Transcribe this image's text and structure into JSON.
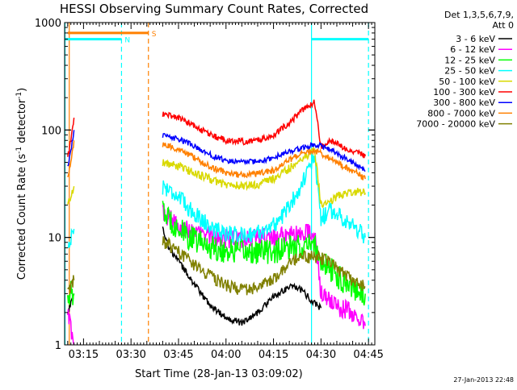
{
  "chart_data": {
    "type": "line",
    "title": "HESSI Observing Summary Count Rates, Corrected",
    "xlabel": "Start Time (28-Jan-13 03:09:02)",
    "ylabel": "Corrected Count Rate (s-1 detector-1)",
    "ylabel_parts": {
      "main": "Corrected Count Rate (s",
      "sup1": "-1",
      "mid": " detector",
      "sup2": "-1",
      "end": ")"
    },
    "yscale": "log",
    "ylim": [
      1,
      1000
    ],
    "xlim": [
      "03:09:02",
      "04:47:00"
    ],
    "x_ticks": [
      "03:15",
      "03:30",
      "03:45",
      "04:00",
      "04:15",
      "04:30",
      "04:45"
    ],
    "y_ticks": [
      "1",
      "10",
      "100",
      "1000"
    ],
    "legend_header": [
      "Det 1,3,5,6,7,9,",
      "Att 0"
    ],
    "legend_position": "right",
    "timestamp": "27-Jan-2013 22:48",
    "flag_labels": [
      "S",
      "N"
    ],
    "series": [
      {
        "name": "3 - 6 keV",
        "color": "#000000",
        "x": [
          "03:10",
          "03:12",
          "03:40",
          "03:42",
          "03:45",
          "03:48",
          "03:52",
          "03:56",
          "04:00",
          "04:05",
          "04:10",
          "04:15",
          "04:18",
          "04:21",
          "04:24",
          "04:27",
          "04:30"
        ],
        "y": [
          2,
          3,
          12,
          8,
          6,
          4.5,
          3,
          2.2,
          1.8,
          1.6,
          2,
          2.8,
          3.2,
          3.6,
          3.2,
          2.6,
          2.2
        ]
      },
      {
        "name": "6 - 12 keV",
        "color": "#ff00ff",
        "x": [
          "03:10",
          "03:12",
          "03:40",
          "03:42",
          "03:45",
          "03:48",
          "03:52",
          "03:56",
          "04:00",
          "04:05",
          "04:10",
          "04:15",
          "04:20",
          "04:25",
          "04:28",
          "04:30",
          "04:33",
          "04:36",
          "04:40",
          "04:44"
        ],
        "y": [
          2,
          1,
          17,
          15,
          13,
          12,
          11,
          10,
          9.8,
          9.7,
          9.8,
          10.2,
          10.5,
          11,
          11.2,
          3,
          2.5,
          2.2,
          2,
          1.5
        ]
      },
      {
        "name": "12 - 25 keV",
        "color": "#00ff00",
        "x": [
          "03:10",
          "03:12",
          "03:40",
          "03:42",
          "03:45",
          "03:48",
          "03:52",
          "03:56",
          "04:00",
          "04:05",
          "04:10",
          "04:15",
          "04:20",
          "04:25",
          "04:28",
          "04:30",
          "04:33",
          "04:36",
          "04:40",
          "04:44"
        ],
        "y": [
          3,
          3,
          17,
          15,
          12,
          10,
          9,
          8,
          7.5,
          7.3,
          7.3,
          7.5,
          7.8,
          8.2,
          8.5,
          6,
          5,
          4.2,
          3.5,
          3
        ]
      },
      {
        "name": "25 - 50 keV",
        "color": "#00ffff",
        "x": [
          "03:10",
          "03:12",
          "03:40",
          "03:42",
          "03:45",
          "03:48",
          "03:52",
          "03:56",
          "04:00",
          "04:05",
          "04:10",
          "04:15",
          "04:18",
          "04:21",
          "04:24",
          "04:27",
          "04:28",
          "04:30",
          "04:33",
          "04:36",
          "04:40",
          "04:44"
        ],
        "y": [
          8,
          12,
          30,
          28,
          24,
          19,
          15,
          12,
          11,
          10.5,
          11,
          13,
          16,
          22,
          32,
          48,
          55,
          15,
          18,
          16,
          13,
          10
        ]
      },
      {
        "name": "50 - 100 keV",
        "color": "#d9d900",
        "x": [
          "03:10",
          "03:12",
          "03:40",
          "03:42",
          "03:45",
          "03:48",
          "03:52",
          "03:56",
          "04:00",
          "04:05",
          "04:10",
          "04:15",
          "04:18",
          "04:21",
          "04:24",
          "04:27",
          "04:28",
          "04:30",
          "04:33",
          "04:36",
          "04:40",
          "04:44"
        ],
        "y": [
          20,
          30,
          50,
          48,
          46,
          42,
          38,
          34,
          31,
          30,
          31,
          35,
          40,
          46,
          55,
          62,
          65,
          20,
          22,
          25,
          27,
          26
        ]
      },
      {
        "name": "100 - 300 keV",
        "color": "#ff0000",
        "x": [
          "03:10",
          "03:11",
          "03:12",
          "03:40",
          "03:42",
          "03:45",
          "03:48",
          "03:52",
          "03:56",
          "04:00",
          "04:05",
          "04:10",
          "04:15",
          "04:18",
          "04:21",
          "04:24",
          "04:27",
          "04:28",
          "04:30",
          "04:33",
          "04:36",
          "04:40",
          "04:44"
        ],
        "y": [
          55,
          80,
          130,
          140,
          138,
          130,
          118,
          100,
          88,
          80,
          78,
          80,
          90,
          105,
          125,
          150,
          175,
          180,
          70,
          78,
          72,
          64,
          57
        ]
      },
      {
        "name": "300 - 800 keV",
        "color": "#0000ff",
        "x": [
          "03:10",
          "03:11",
          "03:12",
          "03:40",
          "03:42",
          "03:45",
          "03:48",
          "03:52",
          "03:56",
          "04:00",
          "04:05",
          "04:10",
          "04:15",
          "04:18",
          "04:21",
          "04:24",
          "04:27",
          "04:28",
          "04:30",
          "04:33",
          "04:36",
          "04:40",
          "04:44"
        ],
        "y": [
          45,
          65,
          100,
          88,
          86,
          82,
          76,
          65,
          57,
          52,
          50,
          51,
          55,
          60,
          64,
          68,
          72,
          73,
          72,
          66,
          58,
          50,
          42
        ]
      },
      {
        "name": "800 - 7000 keV",
        "color": "#ff8000",
        "x": [
          "03:10",
          "03:11",
          "03:12",
          "03:40",
          "03:42",
          "03:45",
          "03:48",
          "03:52",
          "03:56",
          "04:00",
          "04:05",
          "04:10",
          "04:15",
          "04:18",
          "04:21",
          "04:24",
          "04:27",
          "04:28",
          "04:30",
          "04:33",
          "04:36",
          "04:40",
          "04:44"
        ],
        "y": [
          35,
          50,
          80,
          72,
          70,
          66,
          60,
          50,
          44,
          40,
          38,
          39,
          42,
          48,
          55,
          60,
          64,
          65,
          60,
          55,
          48,
          42,
          35
        ]
      },
      {
        "name": "7000 - 20000 keV",
        "color": "#808000",
        "x": [
          "03:10",
          "03:12",
          "03:40",
          "03:42",
          "03:45",
          "03:48",
          "03:52",
          "03:56",
          "04:00",
          "04:05",
          "04:10",
          "04:15",
          "04:18",
          "04:21",
          "04:24",
          "04:27",
          "04:30",
          "04:33",
          "04:36",
          "04:40",
          "04:44"
        ],
        "y": [
          3,
          4,
          9,
          8.5,
          7.5,
          6.2,
          5,
          4.2,
          3.6,
          3.2,
          3.3,
          4.2,
          5,
          6,
          6.5,
          6.6,
          6.4,
          5.8,
          4.8,
          4,
          3.5
        ]
      }
    ],
    "attenuator_bars": [
      {
        "label": "S",
        "color": "#ff8000",
        "x_start": "03:10:00",
        "x_end": "03:35:30",
        "level": 800
      },
      {
        "label": "N",
        "color": "#00ffff",
        "x_start": "03:09:02",
        "x_end": "03:27:00",
        "level": 700
      },
      {
        "label": "",
        "color": "#00ffff",
        "x_start": "04:27:00",
        "x_end": "04:45:00",
        "level": 700
      }
    ],
    "vertical_markers": [
      {
        "color": "#ff8000",
        "style": "solid",
        "x": "03:10:30"
      },
      {
        "color": "#00ffff",
        "style": "solid",
        "x": "03:09:10"
      },
      {
        "color": "#00ffff",
        "style": "dashed",
        "x": "03:27:00"
      },
      {
        "color": "#ff8000",
        "style": "dashed",
        "x": "03:35:30"
      },
      {
        "color": "#00ffff",
        "style": "solid",
        "x": "04:27:00"
      },
      {
        "color": "#00ffff",
        "style": "dashed",
        "x": "04:45:00"
      }
    ]
  }
}
